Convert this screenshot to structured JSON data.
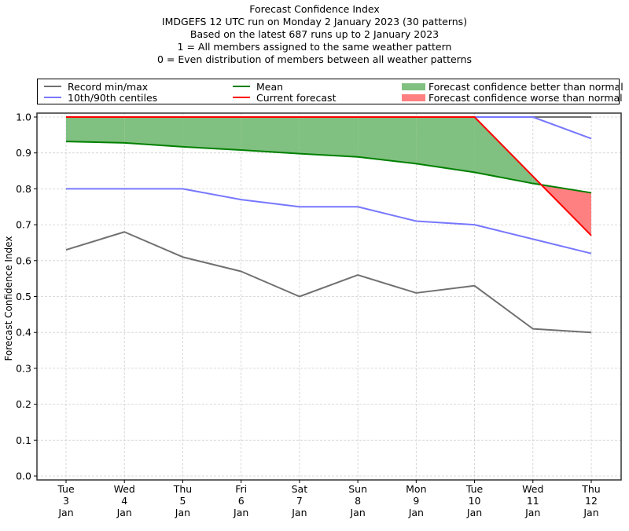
{
  "chart_data": {
    "type": "line",
    "title": "Forecast Confidence Index",
    "subtitle_lines": [
      "IMDGEFS 12 UTC run on Monday 2 January 2023 (30 patterns)",
      "Based on the latest 687 runs up to 2 January 2023",
      "1 = All members assigned to the same weather pattern",
      "0 = Even distribution of members between all weather patterns"
    ],
    "xlabel": "",
    "ylabel": "Forecast Confidence Index",
    "ylim": [
      0.0,
      1.0
    ],
    "yticks": [
      "0.0",
      "0.1",
      "0.2",
      "0.3",
      "0.4",
      "0.5",
      "0.6",
      "0.7",
      "0.8",
      "0.9",
      "1.0"
    ],
    "grid": true,
    "legend_position": "top",
    "categories": [
      [
        "Tue",
        "3",
        "Jan"
      ],
      [
        "Wed",
        "4",
        "Jan"
      ],
      [
        "Thu",
        "5",
        "Jan"
      ],
      [
        "Fri",
        "6",
        "Jan"
      ],
      [
        "Sat",
        "7",
        "Jan"
      ],
      [
        "Sun",
        "8",
        "Jan"
      ],
      [
        "Mon",
        "9",
        "Jan"
      ],
      [
        "Tue",
        "10",
        "Jan"
      ],
      [
        "Wed",
        "11",
        "Jan"
      ],
      [
        "Thu",
        "12",
        "Jan"
      ]
    ],
    "series": [
      {
        "name": "Record min",
        "legend": "Record min/max",
        "color": "#707070",
        "values": [
          0.63,
          0.68,
          0.61,
          0.57,
          0.5,
          0.56,
          0.51,
          0.53,
          0.41,
          0.4
        ]
      },
      {
        "name": "Record max",
        "color": "#707070",
        "values": [
          1.0,
          1.0,
          1.0,
          1.0,
          1.0,
          1.0,
          1.0,
          1.0,
          1.0,
          1.0
        ]
      },
      {
        "name": "10th centile",
        "legend": "10th/90th centiles",
        "color": "#7777ff",
        "values": [
          0.8,
          0.8,
          0.8,
          0.77,
          0.75,
          0.75,
          0.71,
          0.7,
          0.66,
          0.62
        ]
      },
      {
        "name": "90th centile",
        "color": "#7777ff",
        "values": [
          1.0,
          1.0,
          1.0,
          1.0,
          1.0,
          1.0,
          1.0,
          1.0,
          1.0,
          0.94
        ]
      },
      {
        "name": "Mean",
        "legend": "Mean",
        "color": "#008000",
        "values": [
          0.932,
          0.928,
          0.917,
          0.908,
          0.898,
          0.889,
          0.87,
          0.846,
          0.815,
          0.789
        ]
      },
      {
        "name": "Current forecast",
        "legend": "Current forecast",
        "color": "#ff0000",
        "values": [
          1.0,
          1.0,
          1.0,
          1.0,
          1.0,
          1.0,
          1.0,
          1.0,
          0.835,
          0.67
        ]
      }
    ],
    "fills": [
      {
        "legend": "Forecast confidence better than normal",
        "color": "#80c080"
      },
      {
        "legend": "Forecast confidence worse than normal",
        "color": "#ff8080"
      }
    ]
  }
}
